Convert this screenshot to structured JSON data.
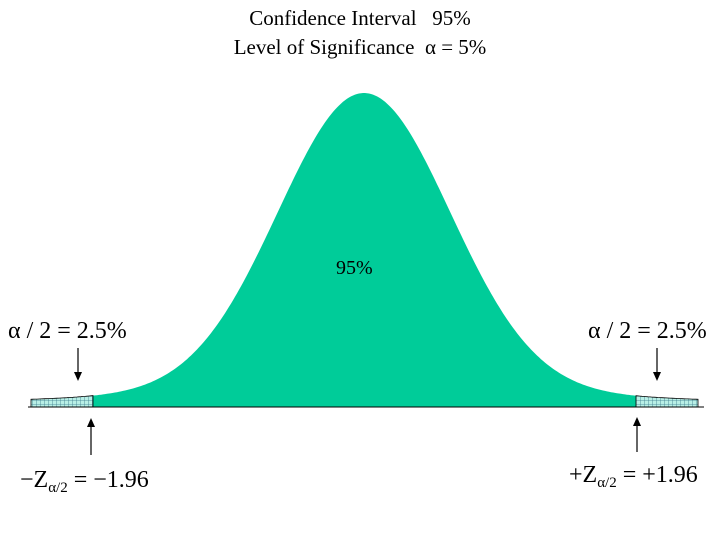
{
  "title": {
    "line1": "Confidence Interval   95%",
    "line2": "Level of Significance  α = 5%"
  },
  "center_label": "95%",
  "tails": {
    "left_alpha": "α / 2 = 2.5%",
    "right_alpha": "α / 2 = 2.5%",
    "left_z_main": "−Z",
    "left_z_sub": "α/2",
    "left_z_value": " = −1.96",
    "right_z_main": "+Z",
    "right_z_sub": "α/2",
    "right_z_value": " = +1.96"
  },
  "colors": {
    "body_fill": "#00cc99",
    "tail_fill": "#b8efe6",
    "tail_grid": "#3a7a8a",
    "axis": "#000000"
  }
}
